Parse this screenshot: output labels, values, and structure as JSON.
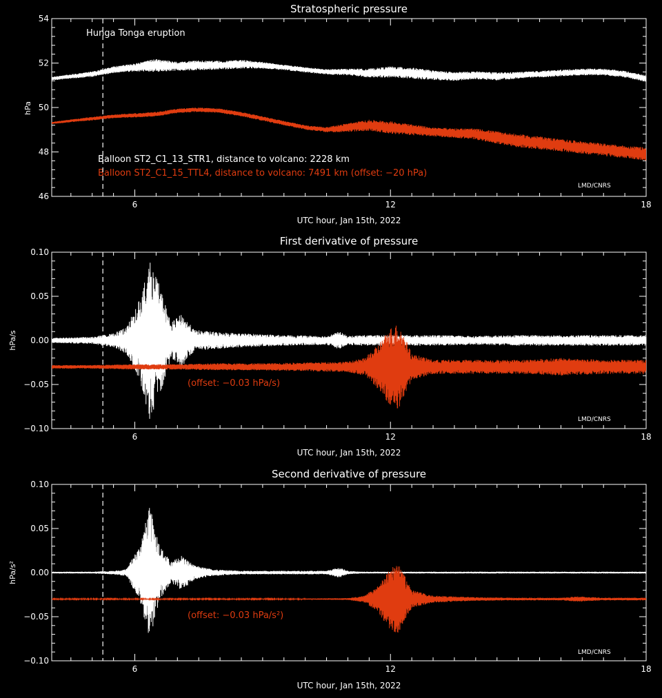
{
  "colors": {
    "background": "#000000",
    "axes": "#ffffff",
    "balloon1": "#ffffff",
    "balloon2": "#e03c10"
  },
  "chart_data": [
    {
      "type": "line",
      "title": "Stratospheric pressure",
      "xlabel": "UTC hour, Jan 15th, 2022",
      "ylabel": "hPa",
      "xlim": [
        4.05,
        18
      ],
      "ylim": [
        46,
        54
      ],
      "xticks": [
        6,
        12,
        18
      ],
      "yticks": [
        46,
        48,
        50,
        52,
        54
      ],
      "ytick_labels": [
        "46",
        "48",
        "50",
        "52",
        "54"
      ],
      "eruption_hour": 5.25,
      "annotation": "Hunga Tonga eruption",
      "credit": "LMD/CNRS",
      "legend": [
        {
          "text": "Balloon ST2_C1_13_STR1, distance to volcano:  2228 km",
          "color": "#ffffff"
        },
        {
          "text": "Balloon ST2_C1_15_TTL4, distance to volcano:  7491 km (offset: −20 hPa)",
          "color": "#e03c10"
        }
      ],
      "series": [
        {
          "color": "#ffffff",
          "x": [
            4.05,
            4.5,
            5.0,
            5.5,
            6.0,
            6.5,
            7.0,
            7.5,
            8.0,
            8.5,
            9.0,
            9.5,
            10.0,
            10.5,
            11.0,
            11.5,
            12.0,
            12.5,
            13.0,
            13.5,
            14.0,
            14.5,
            15.0,
            15.5,
            16.0,
            16.5,
            17.0,
            17.5,
            18.0
          ],
          "y": [
            51.3,
            51.4,
            51.5,
            51.7,
            51.8,
            51.9,
            51.85,
            51.9,
            51.9,
            51.95,
            51.9,
            51.8,
            51.7,
            51.6,
            51.6,
            51.55,
            51.6,
            51.55,
            51.45,
            51.4,
            51.45,
            51.4,
            51.45,
            51.5,
            51.55,
            51.6,
            51.6,
            51.5,
            51.3
          ],
          "amp": [
            0.08,
            0.1,
            0.12,
            0.15,
            0.18,
            0.3,
            0.2,
            0.22,
            0.2,
            0.2,
            0.15,
            0.12,
            0.12,
            0.12,
            0.15,
            0.2,
            0.25,
            0.25,
            0.22,
            0.2,
            0.18,
            0.18,
            0.15,
            0.15,
            0.15,
            0.15,
            0.15,
            0.15,
            0.15
          ]
        },
        {
          "color": "#e03c10",
          "x": [
            4.05,
            4.5,
            5.0,
            5.5,
            6.0,
            6.5,
            7.0,
            7.5,
            8.0,
            8.5,
            9.0,
            9.5,
            10.0,
            10.5,
            11.0,
            11.5,
            12.0,
            12.5,
            13.0,
            13.5,
            14.0,
            14.5,
            15.0,
            15.5,
            16.0,
            16.5,
            17.0,
            17.5,
            18.0
          ],
          "y": [
            49.3,
            49.4,
            49.5,
            49.6,
            49.65,
            49.7,
            49.85,
            49.9,
            49.85,
            49.7,
            49.5,
            49.3,
            49.1,
            49.0,
            49.1,
            49.2,
            49.1,
            49.0,
            48.9,
            48.85,
            48.8,
            48.65,
            48.5,
            48.4,
            48.3,
            48.2,
            48.1,
            48.0,
            47.9
          ],
          "amp": [
            0.05,
            0.06,
            0.08,
            0.08,
            0.1,
            0.1,
            0.1,
            0.1,
            0.1,
            0.1,
            0.1,
            0.1,
            0.1,
            0.12,
            0.2,
            0.25,
            0.28,
            0.25,
            0.2,
            0.22,
            0.25,
            0.28,
            0.3,
            0.3,
            0.28,
            0.28,
            0.28,
            0.28,
            0.3
          ]
        }
      ]
    },
    {
      "type": "line",
      "title": "First derivative of pressure",
      "xlabel": "UTC hour, Jan 15th, 2022",
      "ylabel": "hPa/s",
      "xlim": [
        4.05,
        18
      ],
      "ylim": [
        -0.1,
        0.1
      ],
      "xticks": [
        6,
        12,
        18
      ],
      "yticks": [
        -0.1,
        -0.05,
        0,
        0.05,
        0.1
      ],
      "ytick_labels": [
        "−0.10",
        "−0.05",
        "0.00",
        "0.05",
        "0.10"
      ],
      "eruption_hour": 5.25,
      "credit": "LMD/CNRS",
      "annotation": "(offset: −0.03 hPa/s)",
      "series": [
        {
          "color": "#ffffff",
          "x": [
            4.05,
            5.0,
            5.5,
            5.8,
            6.1,
            6.35,
            6.6,
            6.85,
            7.1,
            7.4,
            7.8,
            8.5,
            9.5,
            10.5,
            10.8,
            11.0,
            11.3,
            12.0,
            13.0,
            14.0,
            15.0,
            16.0,
            17.0,
            18.0
          ],
          "y": [
            0,
            0,
            0,
            0,
            0,
            0,
            0,
            0,
            0,
            0,
            0,
            0,
            0,
            0,
            0,
            0,
            0,
            0,
            0,
            0,
            0,
            0,
            0,
            0
          ],
          "amp": [
            0.003,
            0.004,
            0.008,
            0.015,
            0.045,
            0.09,
            0.06,
            0.02,
            0.03,
            0.012,
            0.01,
            0.008,
            0.006,
            0.005,
            0.01,
            0.005,
            0.006,
            0.006,
            0.006,
            0.005,
            0.006,
            0.006,
            0.006,
            0.006
          ]
        },
        {
          "color": "#e03c10",
          "x": [
            4.05,
            5.0,
            6.0,
            6.5,
            7.0,
            8.0,
            9.0,
            10.0,
            11.0,
            11.4,
            11.7,
            12.0,
            12.2,
            12.5,
            13.0,
            14.0,
            15.0,
            16.0,
            17.0,
            18.0
          ],
          "y": [
            -0.03,
            -0.03,
            -0.03,
            -0.03,
            -0.03,
            -0.03,
            -0.03,
            -0.03,
            -0.03,
            -0.03,
            -0.03,
            -0.03,
            -0.03,
            -0.03,
            -0.03,
            -0.03,
            -0.03,
            -0.03,
            -0.03,
            -0.03
          ],
          "amp": [
            0.002,
            0.002,
            0.003,
            0.003,
            0.003,
            0.004,
            0.004,
            0.005,
            0.006,
            0.01,
            0.025,
            0.045,
            0.05,
            0.015,
            0.008,
            0.008,
            0.008,
            0.01,
            0.008,
            0.008
          ]
        }
      ]
    },
    {
      "type": "line",
      "title": "Second derivative of pressure",
      "xlabel": "UTC hour, Jan 15th, 2022",
      "ylabel": "hPa/s²",
      "xlim": [
        4.05,
        18
      ],
      "ylim": [
        -0.1,
        0.1
      ],
      "xticks": [
        6,
        12,
        18
      ],
      "yticks": [
        -0.1,
        -0.05,
        0,
        0.05,
        0.1
      ],
      "ytick_labels": [
        "−0.10",
        "−0.05",
        "0.00",
        "0.05",
        "0.10"
      ],
      "eruption_hour": 5.25,
      "credit": "LMD/CNRS",
      "annotation": "(offset: −0.03 hPa/s²)",
      "series": [
        {
          "color": "#ffffff",
          "x": [
            4.05,
            5.0,
            5.5,
            5.8,
            6.1,
            6.35,
            6.6,
            6.85,
            7.1,
            7.4,
            7.8,
            8.5,
            9.5,
            10.5,
            10.8,
            11.0,
            11.3,
            12.0,
            13.0,
            14.0,
            15.0,
            16.0,
            17.0,
            18.0
          ],
          "y": [
            0,
            0,
            0,
            0,
            0,
            0,
            0,
            0,
            0,
            0,
            0,
            0,
            0,
            0,
            0,
            0,
            0,
            0,
            0,
            0,
            0,
            0,
            0,
            0
          ],
          "amp": [
            0.001,
            0.001,
            0.002,
            0.004,
            0.03,
            0.075,
            0.03,
            0.012,
            0.02,
            0.008,
            0.004,
            0.002,
            0.002,
            0.002,
            0.006,
            0.002,
            0.001,
            0.001,
            0.001,
            0.001,
            0.001,
            0.001,
            0.001,
            0.001
          ]
        },
        {
          "color": "#e03c10",
          "x": [
            4.05,
            5.0,
            6.0,
            7.0,
            8.0,
            9.0,
            10.0,
            11.0,
            11.4,
            11.7,
            12.0,
            12.2,
            12.5,
            13.0,
            14.0,
            15.0,
            16.0,
            16.4,
            17.0,
            18.0
          ],
          "y": [
            -0.03,
            -0.03,
            -0.03,
            -0.03,
            -0.03,
            -0.03,
            -0.03,
            -0.03,
            -0.03,
            -0.03,
            -0.03,
            -0.03,
            -0.03,
            -0.03,
            -0.03,
            -0.03,
            -0.03,
            -0.03,
            -0.03,
            -0.03
          ],
          "amp": [
            0.0005,
            0.0005,
            0.0005,
            0.0005,
            0.0005,
            0.0005,
            0.0006,
            0.001,
            0.004,
            0.015,
            0.035,
            0.04,
            0.01,
            0.004,
            0.002,
            0.0015,
            0.0015,
            0.003,
            0.0015,
            0.0015
          ]
        }
      ]
    }
  ]
}
